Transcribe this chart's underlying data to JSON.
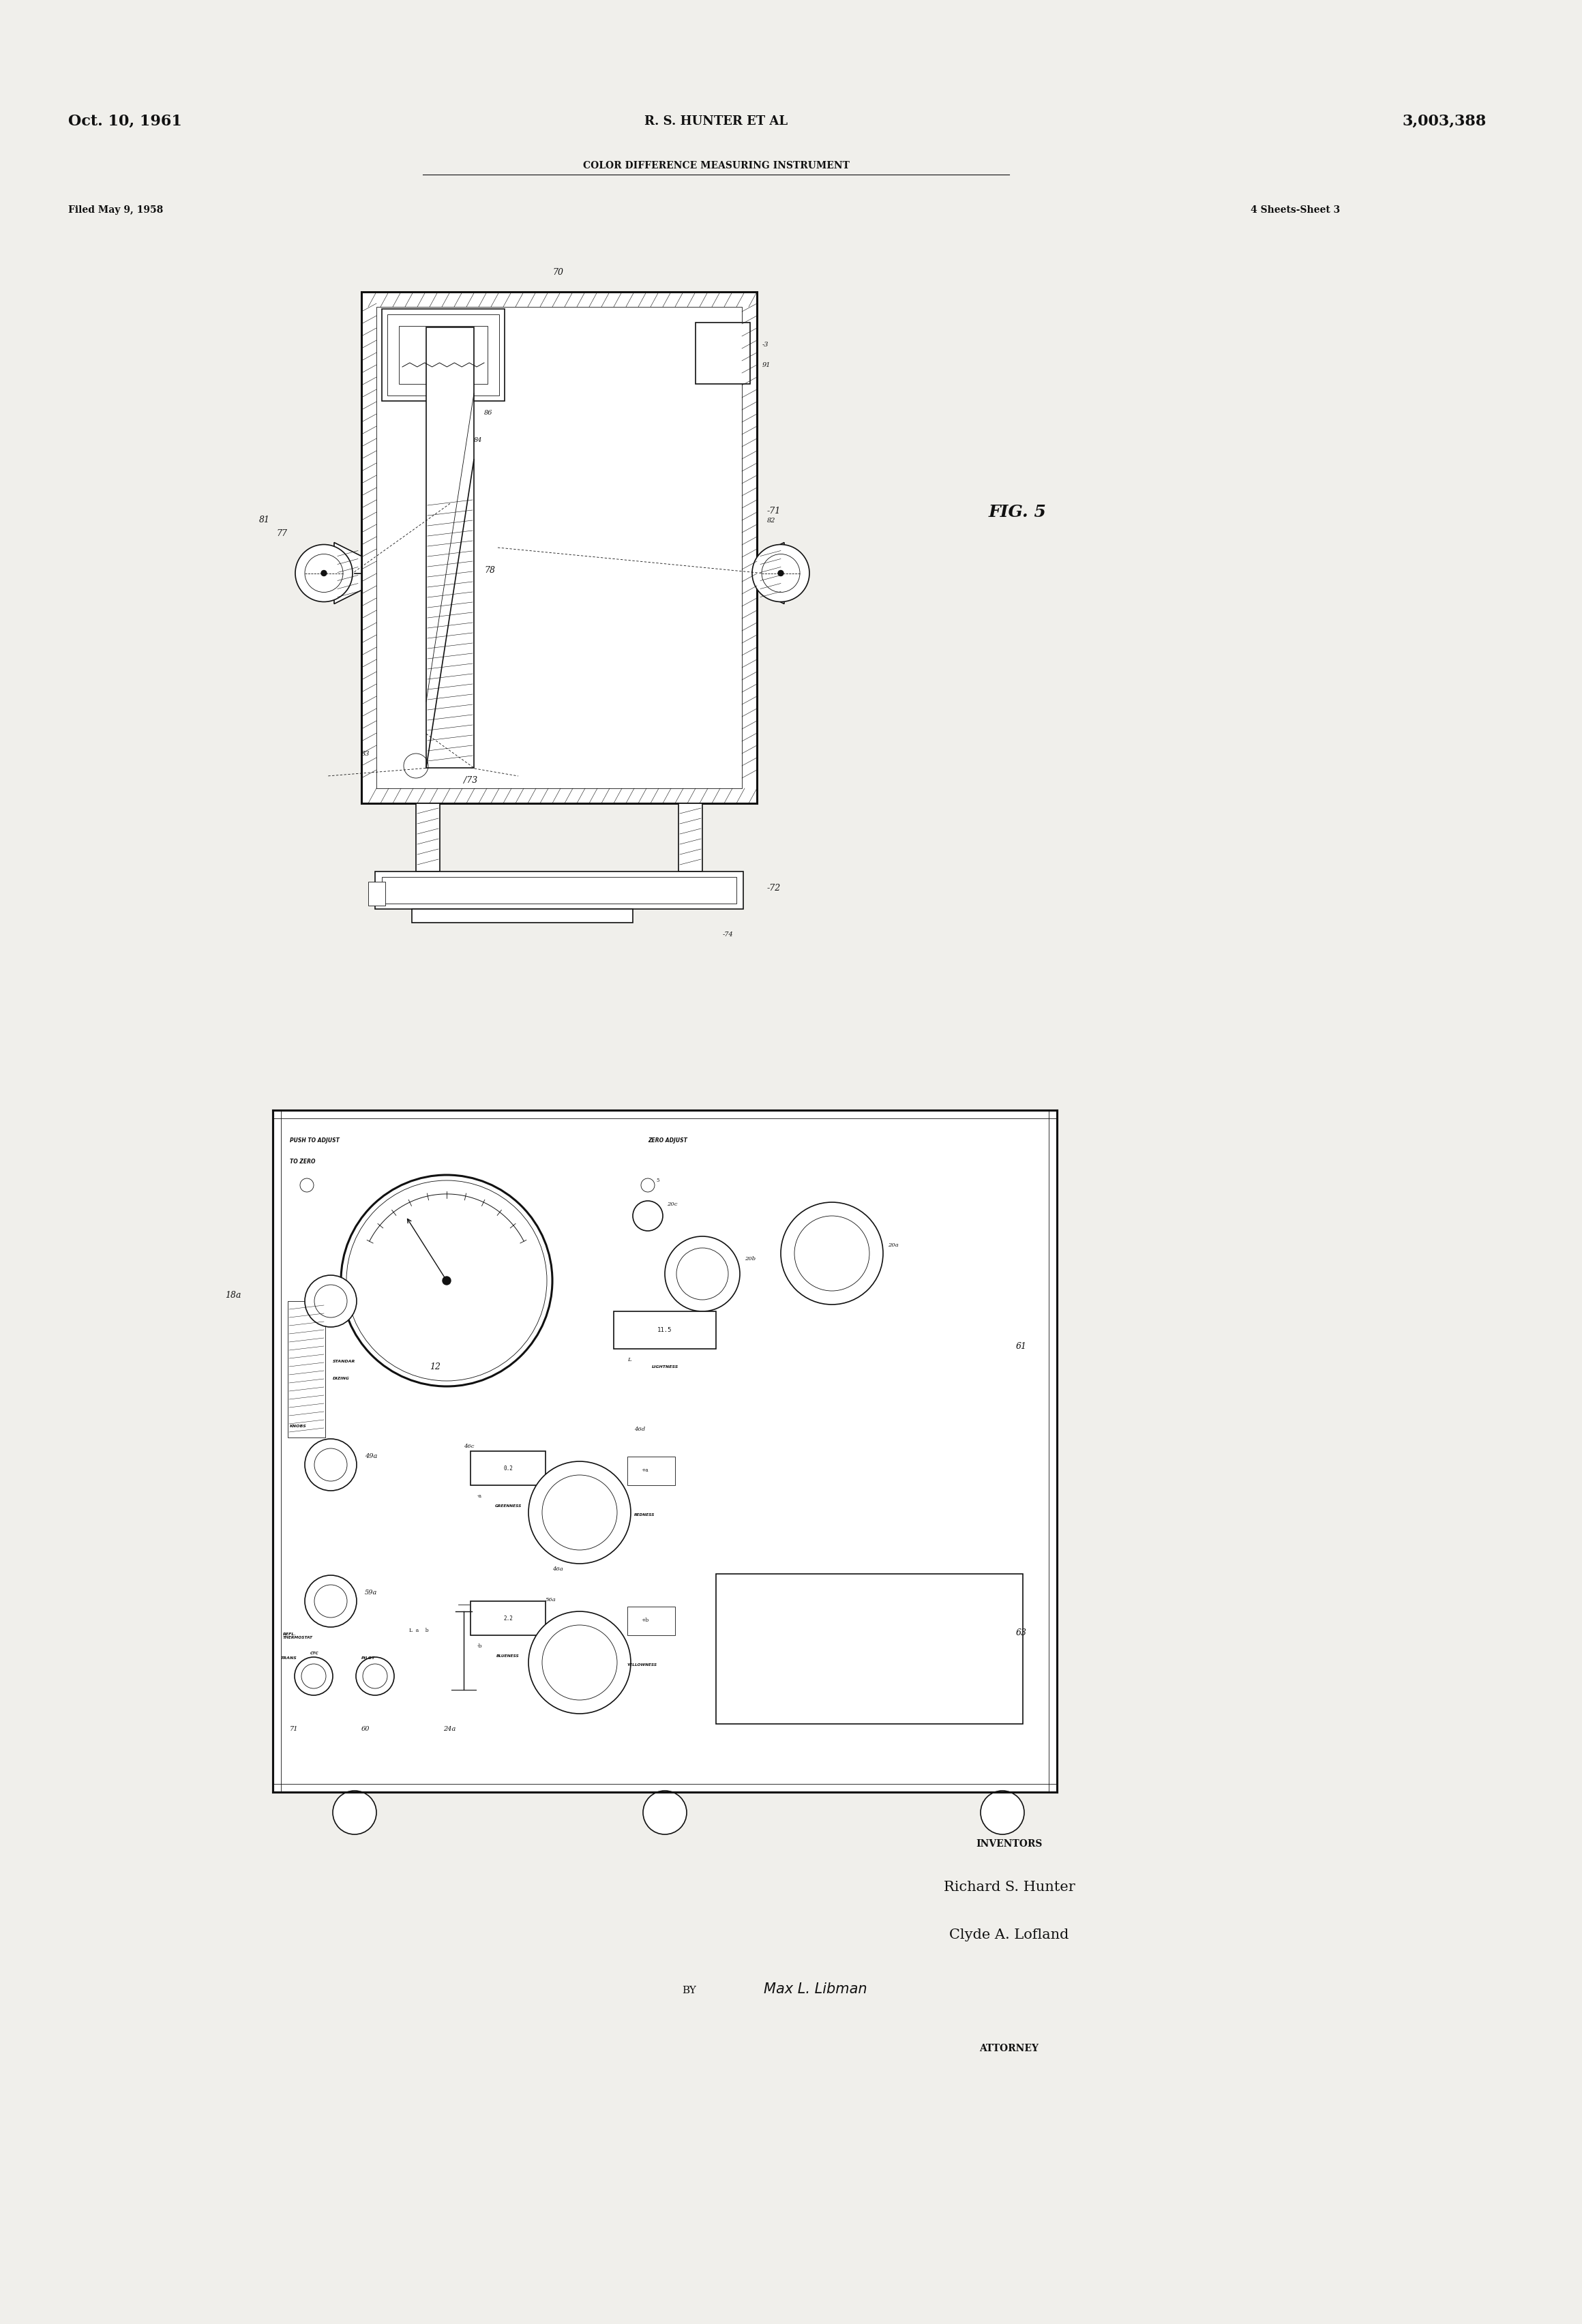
{
  "bg_color": "#f0efeb",
  "line_color": "#111111",
  "page_width": 23.2,
  "page_height": 34.08,
  "header": {
    "date": "Oct. 10, 1961",
    "inventors": "R. S. HUNTER ET AL",
    "patent_num": "3,003,388",
    "title": "COLOR DIFFERENCE MEASURING INSTRUMENT",
    "filed": "Filed May 9, 1958",
    "sheets": "4 Sheets-Sheet 3"
  },
  "footer": {
    "inventors_label": "INVENTORS",
    "inventor1": "Richard S. Hunter",
    "inventor2": "Clyde A. Lofland",
    "by_label": "BY",
    "signature": "Max L. Libman",
    "attorney": "ATTORNEY"
  },
  "fig_label": "FIG. 5"
}
